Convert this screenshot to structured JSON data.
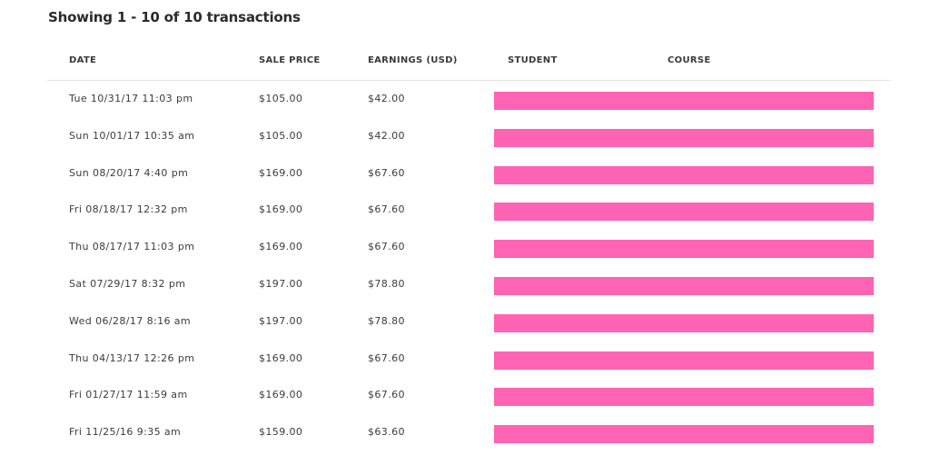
{
  "summary": "Showing 1 - 10 of 10 transactions",
  "redaction_color": "#ff63b3",
  "columns": {
    "date": "DATE",
    "sale_price": "SALE PRICE",
    "earnings": "EARNINGS (USD)",
    "student": "STUDENT",
    "course": "COURSE"
  },
  "rows": [
    {
      "date": "Tue 10/31/17 11:03 pm",
      "sale_price": "$105.00",
      "earnings": "$42.00"
    },
    {
      "date": "Sun 10/01/17 10:35 am",
      "sale_price": "$105.00",
      "earnings": "$42.00"
    },
    {
      "date": "Sun 08/20/17 4:40 pm",
      "sale_price": "$169.00",
      "earnings": "$67.60"
    },
    {
      "date": "Fri 08/18/17 12:32 pm",
      "sale_price": "$169.00",
      "earnings": "$67.60"
    },
    {
      "date": "Thu 08/17/17 11:03 pm",
      "sale_price": "$169.00",
      "earnings": "$67.60"
    },
    {
      "date": "Sat 07/29/17 8:32 pm",
      "sale_price": "$197.00",
      "earnings": "$78.80"
    },
    {
      "date": "Wed 06/28/17 8:16 am",
      "sale_price": "$197.00",
      "earnings": "$78.80"
    },
    {
      "date": "Thu 04/13/17 12:26 pm",
      "sale_price": "$169.00",
      "earnings": "$67.60"
    },
    {
      "date": "Fri 01/27/17 11:59 am",
      "sale_price": "$169.00",
      "earnings": "$67.60"
    },
    {
      "date": "Fri 11/25/16 9:35 am",
      "sale_price": "$159.00",
      "earnings": "$63.60"
    }
  ]
}
